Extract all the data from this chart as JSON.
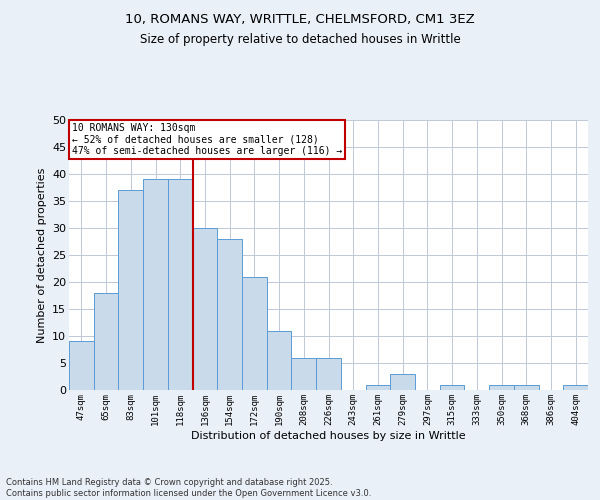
{
  "title_line1": "10, ROMANS WAY, WRITTLE, CHELMSFORD, CM1 3EZ",
  "title_line2": "Size of property relative to detached houses in Writtle",
  "xlabel": "Distribution of detached houses by size in Writtle",
  "ylabel": "Number of detached properties",
  "categories": [
    "47sqm",
    "65sqm",
    "83sqm",
    "101sqm",
    "118sqm",
    "136sqm",
    "154sqm",
    "172sqm",
    "190sqm",
    "208sqm",
    "226sqm",
    "243sqm",
    "261sqm",
    "279sqm",
    "297sqm",
    "315sqm",
    "333sqm",
    "350sqm",
    "368sqm",
    "386sqm",
    "404sqm"
  ],
  "values": [
    9,
    18,
    37,
    39,
    39,
    30,
    28,
    21,
    11,
    6,
    6,
    0,
    1,
    3,
    0,
    1,
    0,
    1,
    1,
    0,
    1
  ],
  "bar_color": "#c9daea",
  "bar_edge_color": "#5b9bd5",
  "grid_color": "#c0c8d8",
  "vline_index": 4.5,
  "vline_color": "#c00000",
  "annotation_text": "10 ROMANS WAY: 130sqm\n← 52% of detached houses are smaller (128)\n47% of semi-detached houses are larger (116) →",
  "annotation_box_color": "#c00000",
  "annotation_box_fill": "#ffffff",
  "footer_text": "Contains HM Land Registry data © Crown copyright and database right 2025.\nContains public sector information licensed under the Open Government Licence v3.0.",
  "ylim": [
    0,
    50
  ],
  "yticks": [
    0,
    5,
    10,
    15,
    20,
    25,
    30,
    35,
    40,
    45,
    50
  ],
  "bg_color": "#eaf0f8",
  "plot_bg_color": "#ffffff"
}
